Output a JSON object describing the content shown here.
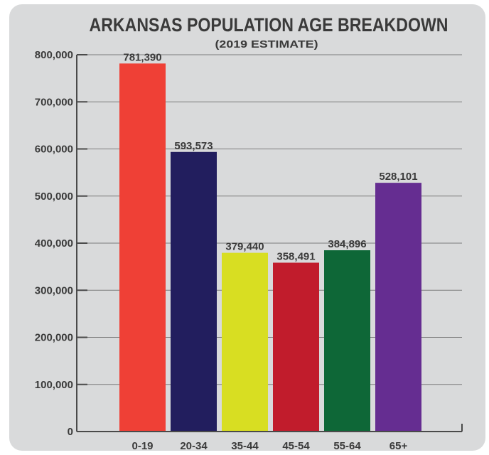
{
  "chart_data": {
    "type": "bar",
    "title": "ARKANSAS POPULATION AGE BREAKDOWN",
    "subtitle": "(2019 ESTIMATE)",
    "xlabel": "",
    "ylabel": "",
    "categories": [
      "0-19",
      "20-34",
      "35-44",
      "45-54",
      "55-64",
      "65+"
    ],
    "values": [
      781390,
      593573,
      379440,
      358491,
      384896,
      528101
    ],
    "value_labels": [
      "781,390",
      "593,573",
      "379,440",
      "358,491",
      "384,896",
      "528,101"
    ],
    "colors": [
      "#ef4036",
      "#221e5e",
      "#d8de22",
      "#c11c2c",
      "#0e6737",
      "#652d91"
    ],
    "ylim": [
      0,
      800000
    ],
    "yticks": [
      0,
      100000,
      200000,
      300000,
      400000,
      500000,
      600000,
      700000,
      800000
    ],
    "ytick_labels": [
      "0",
      "100,000",
      "200,000",
      "300,000",
      "400,000",
      "500,000",
      "600,000",
      "700,000",
      "800,000"
    ],
    "grid": true,
    "legend": "none"
  }
}
